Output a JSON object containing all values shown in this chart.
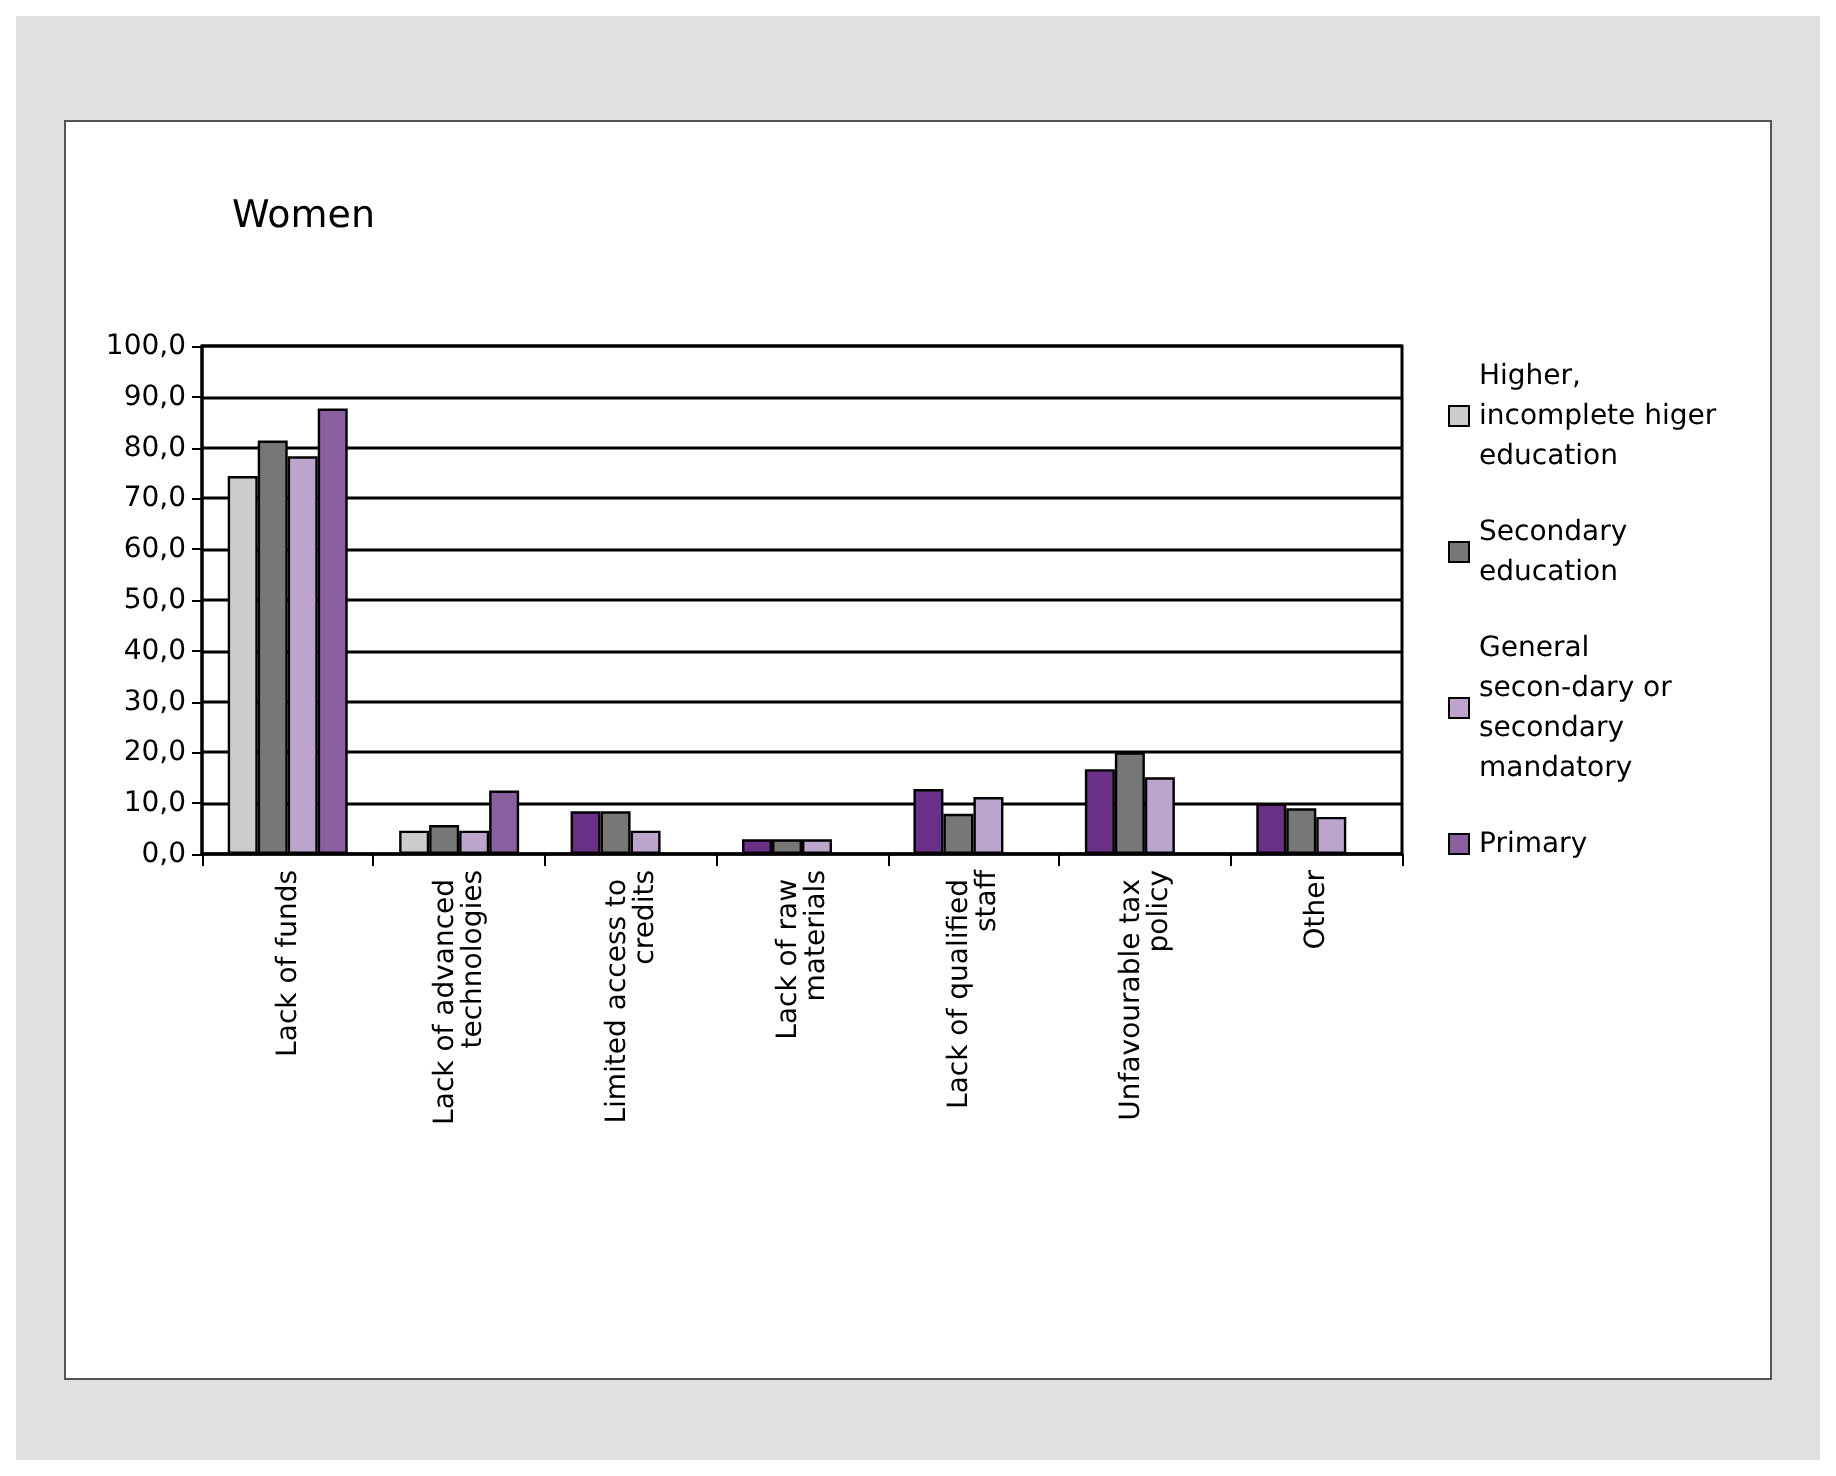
{
  "chart_data": {
    "type": "bar",
    "title": "Women",
    "categories": [
      "Lack of funds",
      "Lack of advanced technologies",
      "Limited access to credits",
      "Lack of raw materials",
      "Lack of qualified staff",
      "Unfavourable tax policy",
      "Other"
    ],
    "series": [
      {
        "name": "Higher, incomplete higer education",
        "color": "#cccccc",
        "colors": [
          "#cccccc",
          "#cccccc",
          "#6a2f86",
          "#6a2f86",
          "#6a2f86",
          "#6a2f86",
          "#6a2f86"
        ],
        "values": [
          74.4,
          4.6,
          8.4,
          2.9,
          12.8,
          16.7,
          9.9
        ]
      },
      {
        "name": "Secondary education",
        "color": "#777777",
        "values": [
          81.4,
          5.7,
          8.4,
          2.9,
          7.9,
          20.0,
          9.0
        ]
      },
      {
        "name": "General secon-dary or secondary mandatory",
        "color": "#bda4cc",
        "values": [
          78.3,
          4.6,
          4.6,
          2.9,
          11.2,
          15.1,
          7.3
        ]
      },
      {
        "name": "Primary",
        "color": "#8a5fa0",
        "values": [
          87.7,
          12.5,
          null,
          null,
          null,
          null,
          null
        ]
      }
    ],
    "ylim": [
      0,
      100
    ],
    "yticks": [
      {
        "value": 0,
        "label": "0,0"
      },
      {
        "value": 10,
        "label": "10,0"
      },
      {
        "value": 20,
        "label": "20,0"
      },
      {
        "value": 30,
        "label": "30,0"
      },
      {
        "value": 40,
        "label": "40,0"
      },
      {
        "value": 50,
        "label": "50,0"
      },
      {
        "value": 60,
        "label": "60,0"
      },
      {
        "value": 70,
        "label": "70,0"
      },
      {
        "value": 80,
        "label": "80,0"
      },
      {
        "value": 90,
        "label": "90,0"
      },
      {
        "value": 100,
        "label": "100,0"
      }
    ],
    "grid": "y",
    "legend": "right"
  }
}
